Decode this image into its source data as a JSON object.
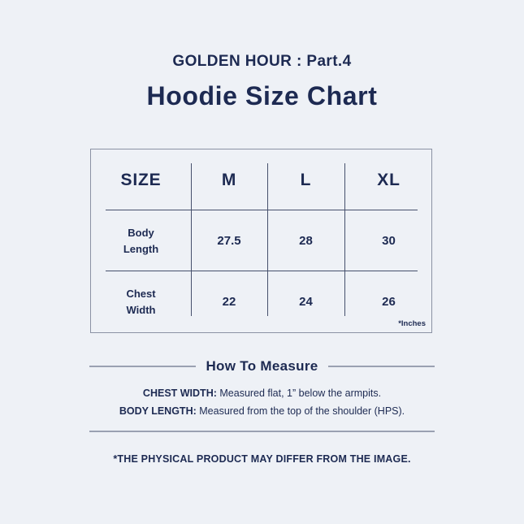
{
  "page": {
    "background_color": "#eef1f6",
    "text_color": "#1d2a52"
  },
  "header": {
    "collection": "GOLDEN HOUR : Part.4",
    "title": "Hoodie Size Chart"
  },
  "size_chart": {
    "columns": [
      "SIZE",
      "M",
      "L",
      "XL"
    ],
    "rows": [
      {
        "label": "Body Length",
        "values": [
          "27.5",
          "28",
          "30"
        ]
      },
      {
        "label": "Chest Width",
        "values": [
          "22",
          "24",
          "26"
        ]
      }
    ],
    "unit_note": "*Inches"
  },
  "how_to_measure": {
    "heading": "How To Measure",
    "items": [
      {
        "term": "CHEST WIDTH:",
        "description": "Measured flat, 1” below the armpits."
      },
      {
        "term": "BODY LENGTH:",
        "description": "Measured from the top of the shoulder (HPS)."
      }
    ]
  },
  "footer": {
    "disclaimer": "*THE PHYSICAL PRODUCT MAY DIFFER FROM THE IMAGE."
  }
}
